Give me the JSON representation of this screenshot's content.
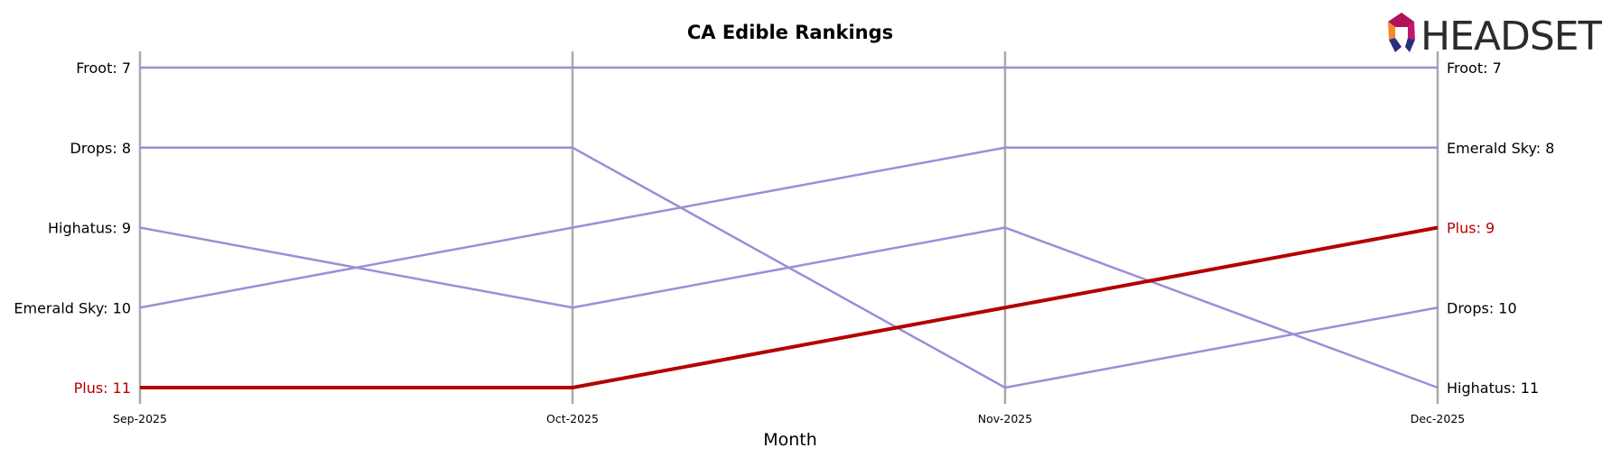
{
  "chart_data": {
    "type": "line",
    "title": "CA Edible Rankings",
    "xlabel": "Month",
    "ylabel": "",
    "categories": [
      "Sep-2025",
      "Oct-2025",
      "Nov-2025",
      "Dec-2025"
    ],
    "ylim": [
      11,
      7
    ],
    "y_inverted": true,
    "grid": "vertical lines at each month",
    "highlight_color": "#b30000",
    "base_color": "#9a8fd8",
    "series": [
      {
        "name": "Froot",
        "values": [
          7,
          7,
          7,
          7
        ],
        "highlight": false
      },
      {
        "name": "Drops",
        "values": [
          8,
          8,
          11,
          10
        ],
        "highlight": false
      },
      {
        "name": "Highatus",
        "values": [
          9,
          10,
          9,
          11
        ],
        "highlight": false
      },
      {
        "name": "Emerald Sky",
        "values": [
          10,
          9,
          8,
          8
        ],
        "highlight": false
      },
      {
        "name": "Plus",
        "values": [
          11,
          11,
          10,
          9
        ],
        "highlight": true
      }
    ]
  },
  "logo": {
    "text": "HEADSET",
    "colors": [
      "#e8356b",
      "#f38a2b",
      "#b0125a",
      "#2a2f7a"
    ]
  }
}
